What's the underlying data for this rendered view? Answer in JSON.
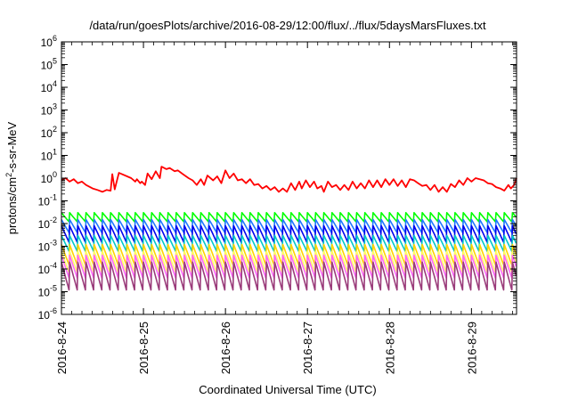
{
  "chart_data": {
    "type": "line",
    "title": "/data/run/goesPlots/archive/2016-08-29/12:00/flux/../flux/5daysMarsFluxes.txt",
    "xlabel": "Coordinated Universal Time (UTC)",
    "ylabel_parts": {
      "base": "protons/cm",
      "sup": "2",
      "rest": "-s-sr-MeV"
    },
    "y_scale": "log",
    "ylim_exponents": [
      -6,
      6
    ],
    "xlim_days": [
      0,
      5.55
    ],
    "x_ticks": [
      {
        "day": 0,
        "label": "2016-8-24"
      },
      {
        "day": 1,
        "label": "2016-8-25"
      },
      {
        "day": 2,
        "label": "2016-8-26"
      },
      {
        "day": 3,
        "label": "2016-8-27"
      },
      {
        "day": 4,
        "label": "2016-8-28"
      },
      {
        "day": 5,
        "label": "2016-8-29"
      }
    ],
    "y_ticks": [
      {
        "exp": -6,
        "base": "10",
        "sup": "-6"
      },
      {
        "exp": -5,
        "base": "10",
        "sup": "-5"
      },
      {
        "exp": -4,
        "base": "10",
        "sup": "-4"
      },
      {
        "exp": -3,
        "base": "10",
        "sup": "-3"
      },
      {
        "exp": -2,
        "base": "10",
        "sup": "-2"
      },
      {
        "exp": -1,
        "base": "10",
        "sup": "-1"
      },
      {
        "exp": 0,
        "base": "10",
        "sup": "0"
      },
      {
        "exp": 1,
        "base": "10",
        "sup": "1"
      },
      {
        "exp": 2,
        "base": "10",
        "sup": "2"
      },
      {
        "exp": 3,
        "base": "10",
        "sup": "3"
      },
      {
        "exp": 4,
        "base": "10",
        "sup": "4"
      },
      {
        "exp": 5,
        "base": "10",
        "sup": "5"
      },
      {
        "exp": 6,
        "base": "10",
        "sup": "6"
      }
    ],
    "grid": false,
    "legend": "none",
    "periodic_series": {
      "period_days": 0.1,
      "x_start": 0,
      "x_end": 5.55,
      "series": [
        {
          "color": "#00ff00",
          "peak": 0.03,
          "trough": 0.012
        },
        {
          "color": "#1f78ff",
          "peak": 0.015,
          "trough": 0.004
        },
        {
          "color": "#0000ee",
          "peak": 0.008,
          "trough": 0.0015
        },
        {
          "color": "#00c8c8",
          "peak": 0.003,
          "trough": 0.0006
        },
        {
          "color": "#ffd400",
          "peak": 0.0012,
          "trough": 0.00015
        },
        {
          "color": "#ffff66",
          "peak": 0.0006,
          "trough": 7e-05
        },
        {
          "color": "#ff66ff",
          "peak": 0.0004,
          "trough": 4e-05
        },
        {
          "color": "#9a3b7a",
          "peak": 0.0002,
          "trough": 1.2e-05
        }
      ]
    },
    "red_series": {
      "color": "#ff0000",
      "points": [
        [
          0.0,
          0.8
        ],
        [
          0.05,
          1.0
        ],
        [
          0.1,
          0.7
        ],
        [
          0.15,
          0.9
        ],
        [
          0.2,
          0.6
        ],
        [
          0.25,
          0.7
        ],
        [
          0.3,
          0.5
        ],
        [
          0.38,
          0.35
        ],
        [
          0.44,
          0.3
        ],
        [
          0.5,
          0.25
        ],
        [
          0.55,
          0.3
        ],
        [
          0.6,
          0.28
        ],
        [
          0.62,
          1.5
        ],
        [
          0.65,
          0.32
        ],
        [
          0.7,
          1.7
        ],
        [
          0.8,
          1.2
        ],
        [
          0.85,
          1.0
        ],
        [
          0.9,
          0.7
        ],
        [
          0.92,
          0.9
        ],
        [
          0.96,
          0.6
        ],
        [
          0.98,
          0.7
        ],
        [
          1.02,
          0.5
        ],
        [
          1.05,
          1.6
        ],
        [
          1.1,
          0.9
        ],
        [
          1.15,
          2.0
        ],
        [
          1.2,
          1.0
        ],
        [
          1.22,
          3.2
        ],
        [
          1.28,
          2.5
        ],
        [
          1.32,
          2.8
        ],
        [
          1.38,
          2.0
        ],
        [
          1.42,
          2.2
        ],
        [
          1.48,
          1.5
        ],
        [
          1.55,
          1.0
        ],
        [
          1.6,
          0.8
        ],
        [
          1.65,
          0.5
        ],
        [
          1.7,
          0.9
        ],
        [
          1.74,
          0.5
        ],
        [
          1.78,
          1.3
        ],
        [
          1.85,
          0.8
        ],
        [
          1.9,
          1.2
        ],
        [
          1.95,
          0.6
        ],
        [
          2.0,
          2.2
        ],
        [
          2.05,
          1.0
        ],
        [
          2.1,
          1.6
        ],
        [
          2.15,
          0.8
        ],
        [
          2.2,
          0.9
        ],
        [
          2.25,
          0.6
        ],
        [
          2.3,
          0.9
        ],
        [
          2.35,
          0.5
        ],
        [
          2.4,
          0.55
        ],
        [
          2.45,
          0.35
        ],
        [
          2.5,
          0.45
        ],
        [
          2.55,
          0.3
        ],
        [
          2.6,
          0.4
        ],
        [
          2.65,
          0.25
        ],
        [
          2.7,
          0.35
        ],
        [
          2.75,
          0.25
        ],
        [
          2.8,
          0.6
        ],
        [
          2.85,
          0.3
        ],
        [
          2.9,
          0.7
        ],
        [
          2.93,
          0.35
        ],
        [
          2.98,
          0.8
        ],
        [
          3.03,
          0.4
        ],
        [
          3.08,
          0.7
        ],
        [
          3.12,
          0.35
        ],
        [
          3.17,
          0.45
        ],
        [
          3.2,
          0.25
        ],
        [
          3.25,
          0.7
        ],
        [
          3.3,
          0.4
        ],
        [
          3.35,
          0.5
        ],
        [
          3.4,
          0.3
        ],
        [
          3.45,
          0.5
        ],
        [
          3.5,
          0.3
        ],
        [
          3.55,
          0.7
        ],
        [
          3.6,
          0.35
        ],
        [
          3.65,
          0.6
        ],
        [
          3.7,
          0.35
        ],
        [
          3.75,
          0.8
        ],
        [
          3.8,
          0.4
        ],
        [
          3.85,
          0.8
        ],
        [
          3.9,
          0.4
        ],
        [
          3.95,
          0.9
        ],
        [
          4.0,
          0.5
        ],
        [
          4.05,
          0.9
        ],
        [
          4.1,
          0.45
        ],
        [
          4.15,
          0.8
        ],
        [
          4.2,
          0.4
        ],
        [
          4.25,
          0.9
        ],
        [
          4.3,
          0.8
        ],
        [
          4.35,
          0.6
        ],
        [
          4.4,
          0.45
        ],
        [
          4.45,
          0.5
        ],
        [
          4.5,
          0.3
        ],
        [
          4.55,
          0.5
        ],
        [
          4.6,
          0.25
        ],
        [
          4.65,
          0.4
        ],
        [
          4.7,
          0.25
        ],
        [
          4.75,
          0.55
        ],
        [
          4.8,
          0.4
        ],
        [
          4.85,
          0.8
        ],
        [
          4.9,
          0.5
        ],
        [
          4.95,
          1.0
        ],
        [
          5.0,
          0.7
        ],
        [
          5.05,
          1.0
        ],
        [
          5.1,
          0.9
        ],
        [
          5.15,
          0.8
        ],
        [
          5.2,
          0.6
        ],
        [
          5.25,
          0.55
        ],
        [
          5.3,
          0.4
        ],
        [
          5.35,
          0.35
        ],
        [
          5.4,
          0.28
        ],
        [
          5.45,
          0.5
        ],
        [
          5.48,
          0.35
        ],
        [
          5.52,
          0.5
        ],
        [
          5.55,
          1.0
        ]
      ]
    }
  }
}
